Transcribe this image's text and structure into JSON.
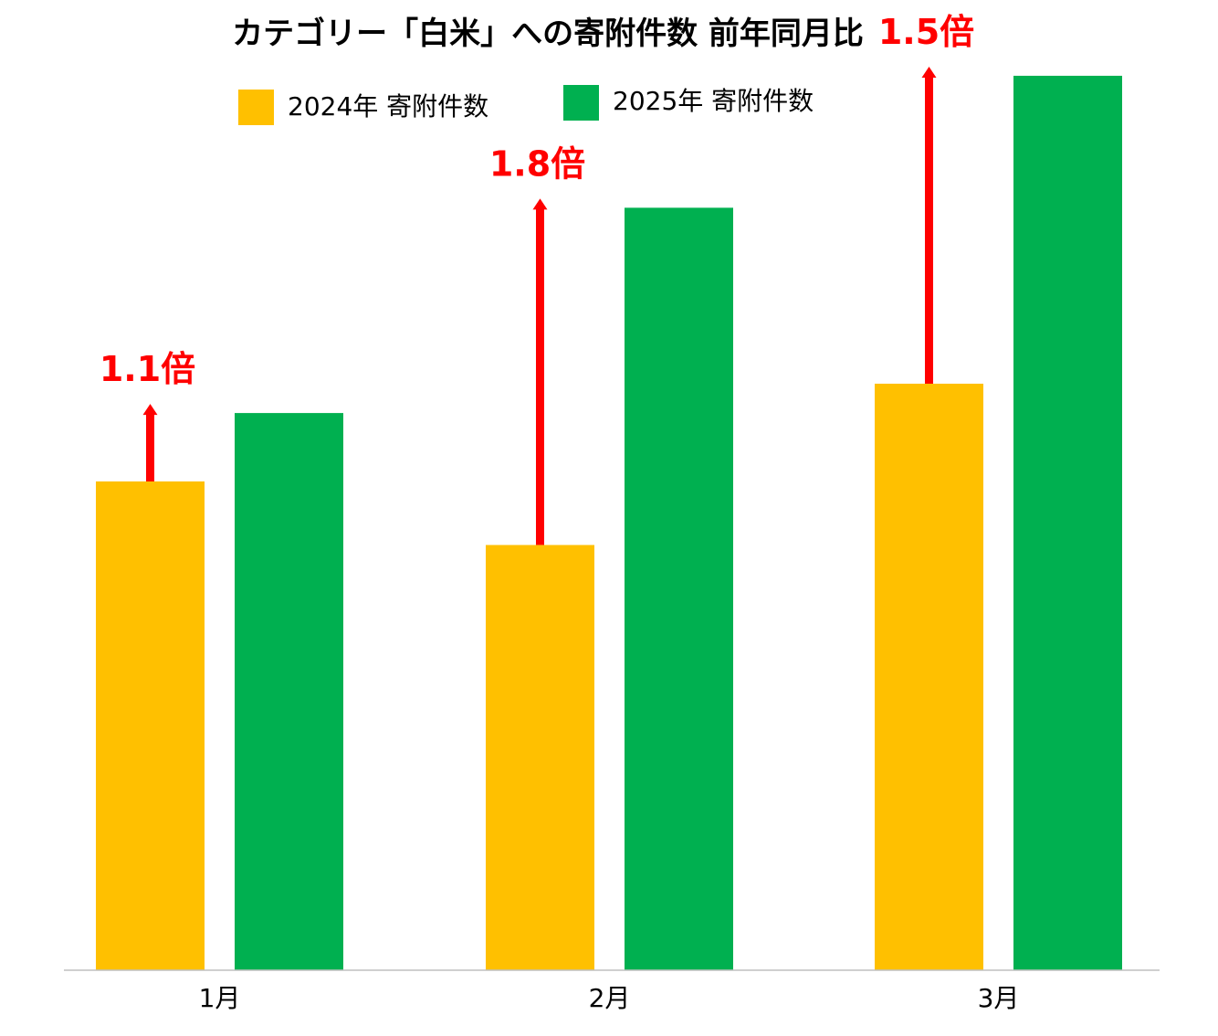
{
  "colors": {
    "series_2024": "#FFC000",
    "series_2025": "#00B050",
    "arrow": "#FF0000",
    "ratio_text": "#FF0000",
    "axis": "#BFBFBF"
  },
  "chart_data": {
    "type": "bar",
    "title": "カテゴリー「白米」への寄附件数 前年同月比",
    "categories": [
      "1月",
      "2月",
      "3月"
    ],
    "series": [
      {
        "name": "2024年 寄附件数",
        "values": [
          1.0,
          0.87,
          1.2
        ]
      },
      {
        "name": "2025年 寄附件数",
        "values": [
          1.14,
          1.56,
          1.83
        ]
      }
    ],
    "ylim": [
      0,
      2.0
    ],
    "xlabel": "",
    "ylabel": "",
    "grid": false,
    "legend": "top",
    "annotations": [
      {
        "category": "1月",
        "label": "1.1倍"
      },
      {
        "category": "2月",
        "label": "1.8倍"
      },
      {
        "category": "3月",
        "label": "1.5倍"
      }
    ]
  }
}
